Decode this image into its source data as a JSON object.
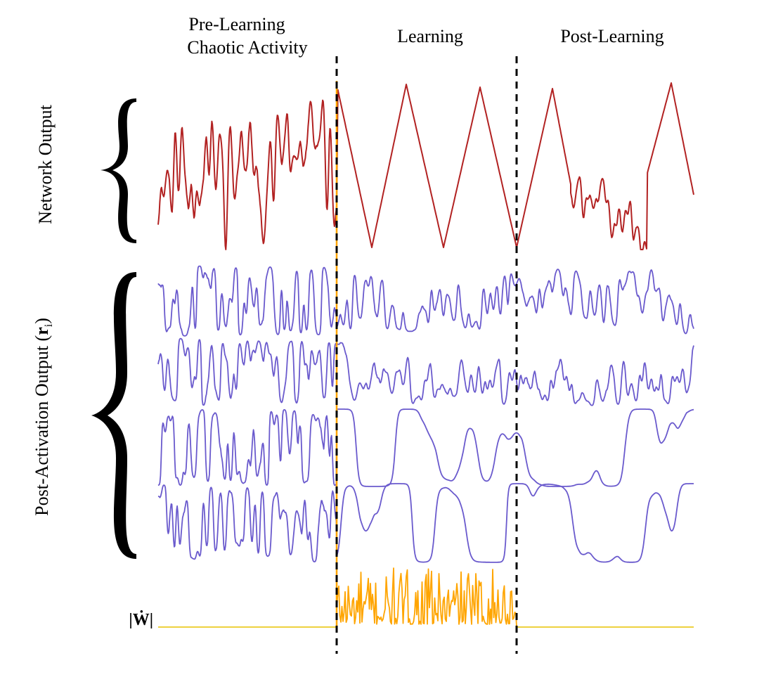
{
  "phases": {
    "pre": [
      "Pre-Learning",
      "Chaotic Activity"
    ],
    "learning": "Learning",
    "post": "Post-Learning"
  },
  "labels": {
    "network_output": "Network Output",
    "post_activation_prefix": "Post-Activation Output (",
    "post_activation_symbol": "r",
    "post_activation_subscript": "i",
    "post_activation_suffix": ")",
    "weight_change": "|Ẇ|"
  },
  "colors": {
    "network_output": "#b22222",
    "activations": "#6a5acd",
    "weight_change": "#ffa500",
    "weight_baseline": "#e8c200",
    "phase_divider": "#000000"
  }
}
